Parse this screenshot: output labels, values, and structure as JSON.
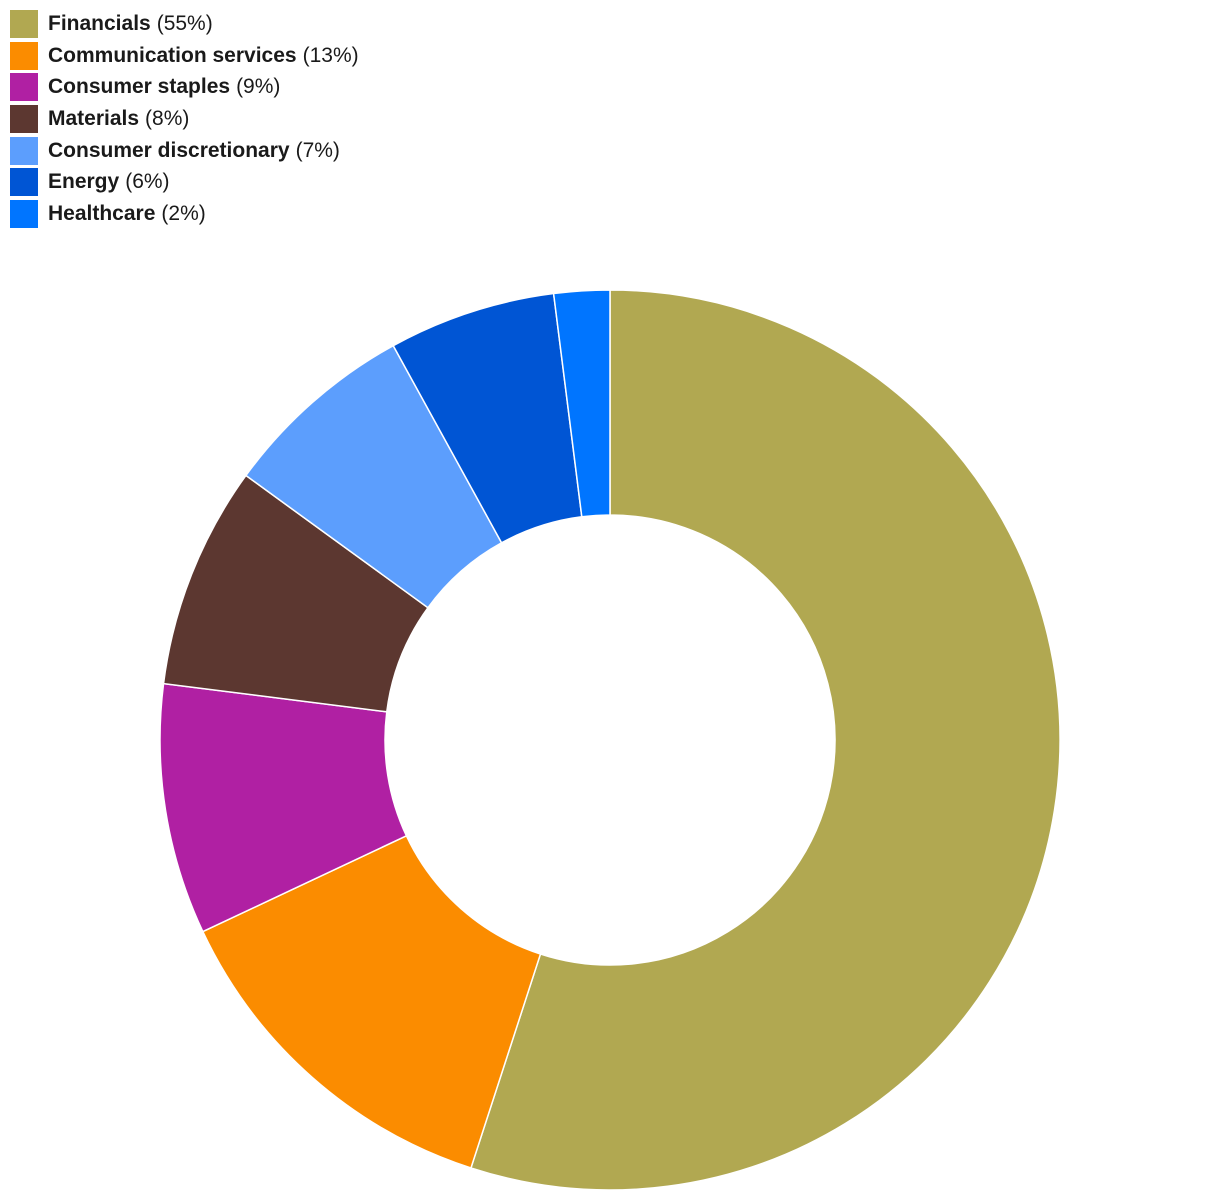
{
  "chart_data": {
    "type": "pie",
    "variant": "donut",
    "title": "",
    "legend_placement": "top-left",
    "categories": [
      "Financials",
      "Communication services",
      "Consumer staples",
      "Materials",
      "Consumer discretionary",
      "Energy",
      "Healthcare"
    ],
    "values": [
      55,
      13,
      9,
      8,
      7,
      6,
      2
    ],
    "labels": [
      "(55%)",
      "(13%)",
      "(9%)",
      "(8%)",
      "(7%)",
      "(6%)",
      "(2%)"
    ],
    "colors": [
      "#b1a851",
      "#fb8c00",
      "#b020a3",
      "#5c3730",
      "#5c9efd",
      "#0055d4",
      "#0075ff"
    ]
  }
}
